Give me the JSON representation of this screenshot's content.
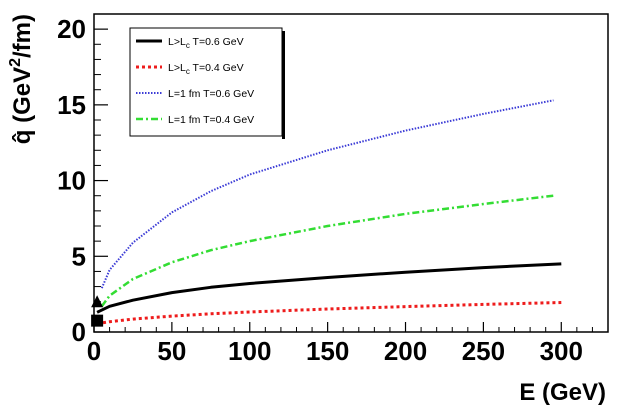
{
  "chart_data": {
    "type": "line",
    "xlabel": "E (GeV)",
    "ylabel": "q̂ (GeV²/fm)",
    "ylabel_parts": {
      "hat": "q̂",
      "unit_a": " (GeV",
      "exp": "2",
      "unit_b": "/fm)"
    },
    "xlim": [
      0,
      330
    ],
    "ylim": [
      0,
      21
    ],
    "xticks": [
      0,
      50,
      100,
      150,
      200,
      250,
      300
    ],
    "yticks": [
      0,
      5,
      10,
      15,
      20
    ],
    "xtick_labels": [
      "0",
      "50",
      "100",
      "150",
      "200",
      "250",
      "300"
    ],
    "ytick_labels": [
      "0",
      "5",
      "10",
      "15",
      "20"
    ],
    "grid": false,
    "legend_position": "top-left",
    "series": [
      {
        "legend": {
          "pre": "L>L",
          "sub": "c",
          "post": " T=0.6 GeV"
        },
        "color": "#000000",
        "dash": "solid",
        "x": [
          2,
          10,
          25,
          50,
          75,
          100,
          150,
          200,
          250,
          300
        ],
        "y": [
          1.3,
          1.7,
          2.1,
          2.6,
          2.95,
          3.2,
          3.6,
          3.95,
          4.25,
          4.5
        ]
      },
      {
        "legend": {
          "pre": "L>L",
          "sub": "c",
          "post": " T=0.4 GeV"
        },
        "color": "#ee1c1c",
        "dash": "dotted",
        "x": [
          2,
          10,
          25,
          50,
          75,
          100,
          150,
          200,
          250,
          300
        ],
        "y": [
          0.55,
          0.68,
          0.85,
          1.05,
          1.2,
          1.32,
          1.52,
          1.68,
          1.82,
          1.95
        ]
      },
      {
        "legend": {
          "pre": "L=1 fm T=0.6 GeV",
          "sub": "",
          "post": ""
        },
        "color": "#3b3bd6",
        "dash": "fine-dotted",
        "x": [
          5,
          10,
          25,
          50,
          75,
          100,
          150,
          200,
          250,
          295
        ],
        "y": [
          2.9,
          4.1,
          5.9,
          7.9,
          9.3,
          10.4,
          12.0,
          13.3,
          14.4,
          15.3
        ]
      },
      {
        "legend": {
          "pre": "L=1 fm T=0.4 GeV",
          "sub": "",
          "post": ""
        },
        "color": "#33dd33",
        "dash": "dash-dot",
        "x": [
          5,
          10,
          25,
          50,
          75,
          100,
          150,
          200,
          250,
          295
        ],
        "y": [
          1.7,
          2.4,
          3.5,
          4.6,
          5.4,
          6.0,
          7.0,
          7.8,
          8.45,
          9.0
        ]
      }
    ],
    "markers": [
      {
        "shape": "triangle",
        "x": 2,
        "y": 1.9,
        "color": "#000000"
      },
      {
        "shape": "square",
        "x": 2,
        "y": 0.75,
        "color": "#000000"
      }
    ]
  }
}
